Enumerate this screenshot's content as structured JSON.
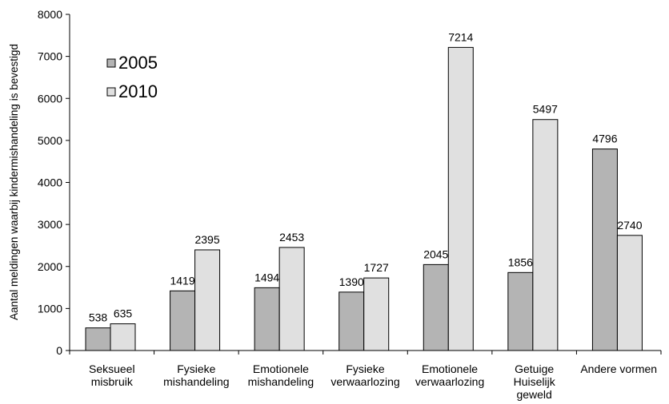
{
  "chart_data": {
    "type": "bar",
    "title": "",
    "xlabel": "",
    "ylabel": "Aantal meldingen waarbij kindermishandeling is bevestigd",
    "ylim": [
      0,
      8000
    ],
    "yticks": [
      0,
      1000,
      2000,
      3000,
      4000,
      5000,
      6000,
      7000,
      8000
    ],
    "grid": false,
    "legend_position": "top-left",
    "categories": [
      [
        "Seksueel",
        "misbruik"
      ],
      [
        "Fysieke",
        "mishandeling"
      ],
      [
        "Emotionele",
        "mishandeling"
      ],
      [
        "Fysieke",
        "verwaarlozing"
      ],
      [
        "Emotionele",
        "verwaarlozing"
      ],
      [
        "Getuige",
        "Huiselijk",
        "geweld"
      ],
      [
        "Andere vormen"
      ]
    ],
    "series": [
      {
        "name": "2005",
        "color": "#b4b4b4",
        "values": [
          538,
          1419,
          1494,
          1390,
          2045,
          1856,
          4796
        ]
      },
      {
        "name": "2010",
        "color": "#e0e0e0",
        "values": [
          635,
          2395,
          2453,
          1727,
          7214,
          5497,
          2740
        ]
      }
    ]
  }
}
